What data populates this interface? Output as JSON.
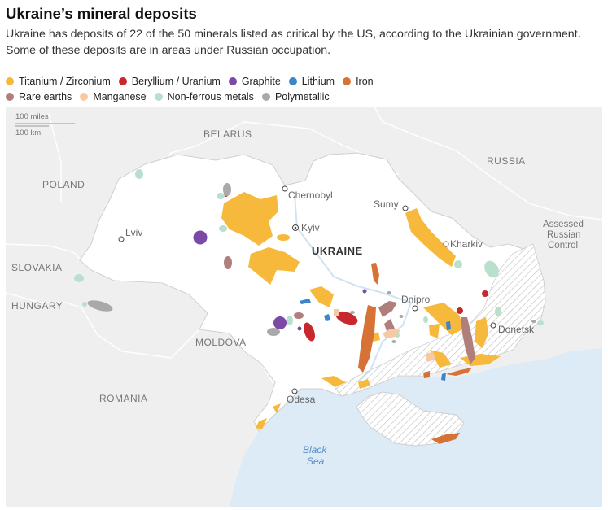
{
  "title": "Ukraine’s mineral deposits",
  "subtitle": "Ukraine has deposits of 22 of the 50 minerals listed as critical by the US, according to the Ukrainian government. Some of these deposits are in areas under Russian occupation.",
  "legend": {
    "row1": [
      {
        "label": "Titanium / Zirconium",
        "color": "#f6b93b"
      },
      {
        "label": "Beryllium / Uranium",
        "color": "#c8272d"
      },
      {
        "label": "Graphite",
        "color": "#7b4aa6"
      },
      {
        "label": "Lithium",
        "color": "#3b86c6"
      },
      {
        "label": "Iron",
        "color": "#d77237"
      }
    ],
    "row2": [
      {
        "label": "Rare earths",
        "color": "#b07f7c"
      },
      {
        "label": "Manganese",
        "color": "#f7c9a0"
      },
      {
        "label": "Non-ferrous metals",
        "color": "#b9e0cc"
      },
      {
        "label": "Polymetallic",
        "color": "#a9a9a9"
      }
    ]
  },
  "map": {
    "scale": {
      "miles": "100 miles",
      "km": "100 km"
    },
    "countries": {
      "belarus": "BELARUS",
      "russia": "RUSSIA",
      "poland": "POLAND",
      "slovakia": "SLOVAKIA",
      "hungary": "HUNGARY",
      "moldova": "MOLDOVA",
      "romania": "ROMANIA",
      "ukraine": "UKRAINE"
    },
    "cities": {
      "chernobyl": "Chernobyl",
      "kyiv": "Kyiv",
      "sumy": "Sumy",
      "kharkiv": "Kharkiv",
      "lviv": "Lviv",
      "dnipro": "Dnipro",
      "donetsk": "Donetsk",
      "odesa": "Odesa"
    },
    "sea": {
      "line1": "Black",
      "line2": "Sea"
    },
    "occupied_note": {
      "line1": "Assessed",
      "line2": "Russian",
      "line3": "Control"
    }
  }
}
